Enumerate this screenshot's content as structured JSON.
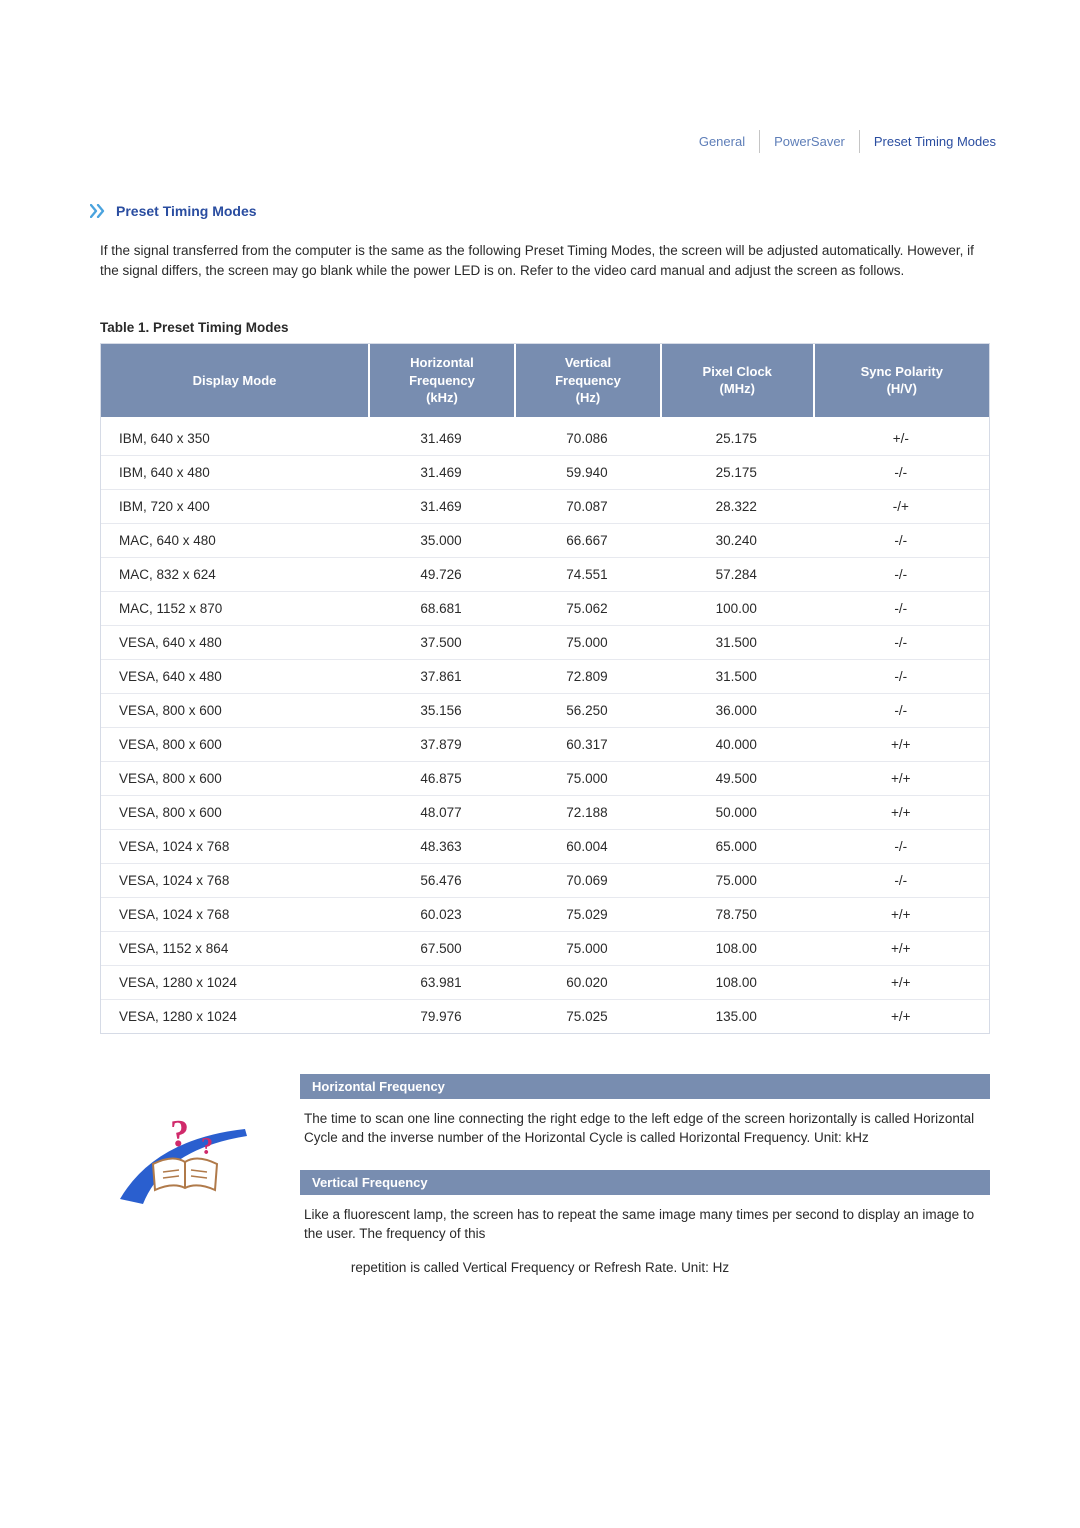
{
  "tabs": {
    "items": [
      {
        "label": "General",
        "active": false
      },
      {
        "label": "PowerSaver",
        "active": false
      },
      {
        "label": "Preset Timing Modes",
        "active": true
      }
    ],
    "active_color": "#2a4da0",
    "inactive_color": "#5e7eb8"
  },
  "section": {
    "title": "Preset Timing Modes",
    "title_color": "#2a4da0",
    "icon_color": "#4aa3de"
  },
  "intro": "If the signal transferred from the computer is the same as the following Preset Timing Modes, the screen will be adjusted automatically. However, if the signal differs, the screen may go blank while the power LED is on. Refer to the video card manual and adjust the screen as follows.",
  "table": {
    "caption": "Table 1. Preset Timing Modes",
    "header_bg": "#788db0",
    "header_fg": "#ffffff",
    "border_color": "#d6dbe6",
    "columns": [
      "Display Mode",
      "Horizontal Frequency (kHz)",
      "Vertical Frequency (Hz)",
      "Pixel Clock (MHz)",
      "Sync Polarity (H/V)"
    ],
    "column_headers_multiline": [
      [
        "Display Mode"
      ],
      [
        "Horizontal",
        "Frequency",
        "(kHz)"
      ],
      [
        "Vertical",
        "Frequency",
        "(Hz)"
      ],
      [
        "Pixel Clock",
        "(MHz)"
      ],
      [
        "Sync Polarity",
        "(H/V)"
      ]
    ],
    "rows": [
      [
        "IBM, 640 x 350",
        "31.469",
        "70.086",
        "25.175",
        "+/-"
      ],
      [
        "IBM, 640 x 480",
        "31.469",
        "59.940",
        "25.175",
        "-/-"
      ],
      [
        "IBM, 720 x 400",
        "31.469",
        "70.087",
        "28.322",
        "-/+"
      ],
      [
        "MAC, 640 x 480",
        "35.000",
        "66.667",
        "30.240",
        "-/-"
      ],
      [
        "MAC, 832 x 624",
        "49.726",
        "74.551",
        "57.284",
        "-/-"
      ],
      [
        "MAC, 1152 x 870",
        "68.681",
        "75.062",
        "100.00",
        "-/-"
      ],
      [
        "VESA, 640 x 480",
        "37.500",
        "75.000",
        "31.500",
        "-/-"
      ],
      [
        "VESA, 640 x 480",
        "37.861",
        "72.809",
        "31.500",
        "-/-"
      ],
      [
        "VESA, 800 x 600",
        "35.156",
        "56.250",
        "36.000",
        "-/-"
      ],
      [
        "VESA, 800 x 600",
        "37.879",
        "60.317",
        "40.000",
        "+/+"
      ],
      [
        "VESA, 800 x 600",
        "46.875",
        "75.000",
        "49.500",
        "+/+"
      ],
      [
        "VESA, 800 x 600",
        "48.077",
        "72.188",
        "50.000",
        "+/+"
      ],
      [
        "VESA, 1024 x 768",
        "48.363",
        "60.004",
        "65.000",
        "-/-"
      ],
      [
        "VESA, 1024 x 768",
        "56.476",
        "70.069",
        "75.000",
        "-/-"
      ],
      [
        "VESA, 1024 x 768",
        "60.023",
        "75.029",
        "78.750",
        "+/+"
      ],
      [
        "VESA, 1152 x 864",
        "67.500",
        "75.000",
        "108.00",
        "+/+"
      ],
      [
        "VESA, 1280 x 1024",
        "63.981",
        "60.020",
        "108.00",
        "+/+"
      ],
      [
        "VESA, 1280 x 1024",
        "79.976",
        "75.025",
        "135.00",
        "+/+"
      ]
    ]
  },
  "defs": {
    "bar_bg": "#788db0",
    "bar_fg": "#ffffff",
    "h": {
      "title": "Horizontal Frequency",
      "text": "The time to scan one line connecting the right edge to the left edge of the screen horizontally is called Horizontal Cycle and the inverse number of the Horizontal Cycle is called Horizontal Frequency. Unit: kHz"
    },
    "v": {
      "title": "Vertical Frequency",
      "text": "Like a fluorescent lamp, the screen has to repeat the same image many times per second to display an image to the user. The frequency of this",
      "tail": "repetition is called Vertical Frequency or Refresh Rate. Unit: Hz"
    },
    "icon_colors": {
      "book_fill": "#ffffff",
      "book_stroke": "#b07a4a",
      "swoosh": "#2a5fcf",
      "question": "#d02a6b"
    }
  }
}
